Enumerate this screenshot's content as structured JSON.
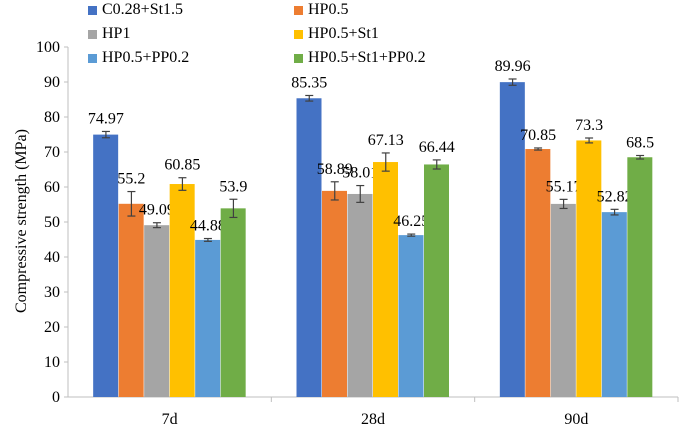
{
  "chart_data": {
    "type": "bar",
    "title": "",
    "xlabel": "",
    "ylabel": "Compressive strength (MPa)",
    "ylim": [
      0,
      100
    ],
    "ytick_step": 10,
    "categories": [
      "7d",
      "28d",
      "90d"
    ],
    "series": [
      {
        "name": "C0.28+St1.5",
        "color": "#4472C4",
        "values": [
          74.97,
          85.35,
          89.96
        ],
        "errors": [
          0.9,
          0.8,
          0.9
        ],
        "labels": [
          "74.97",
          "85.35",
          "89.96"
        ]
      },
      {
        "name": "HP0.5",
        "color": "#ED7D31",
        "values": [
          55.2,
          58.89,
          70.85
        ],
        "errors": [
          3.5,
          2.6,
          0.3
        ],
        "labels": [
          "55.2",
          "58.89",
          "70.85"
        ]
      },
      {
        "name": "HP1",
        "color": "#A5A5A5",
        "values": [
          49.09,
          58.01,
          55.17
        ],
        "errors": [
          0.7,
          2.4,
          1.3
        ],
        "labels": [
          "49.09",
          "58.01",
          "55.17"
        ]
      },
      {
        "name": "HP0.5+St1",
        "color": "#FFC000",
        "values": [
          60.85,
          67.13,
          73.3
        ],
        "errors": [
          1.8,
          2.6,
          0.7
        ],
        "labels": [
          "60.85",
          "67.13",
          "73.3"
        ]
      },
      {
        "name": "HP0.5+PP0.2",
        "color": "#5B9BD5",
        "values": [
          44.88,
          46.25,
          52.82
        ],
        "errors": [
          0.4,
          0.3,
          0.8
        ],
        "labels": [
          "44.88",
          "46.25",
          "52.82"
        ]
      },
      {
        "name": "HP0.5+St1+PP0.2",
        "color": "#70AD47",
        "values": [
          53.9,
          66.44,
          68.5
        ],
        "errors": [
          2.6,
          1.3,
          0.5
        ],
        "labels": [
          "53.9",
          "66.44",
          "68.5"
        ]
      }
    ],
    "grid": false,
    "legend": "top"
  }
}
